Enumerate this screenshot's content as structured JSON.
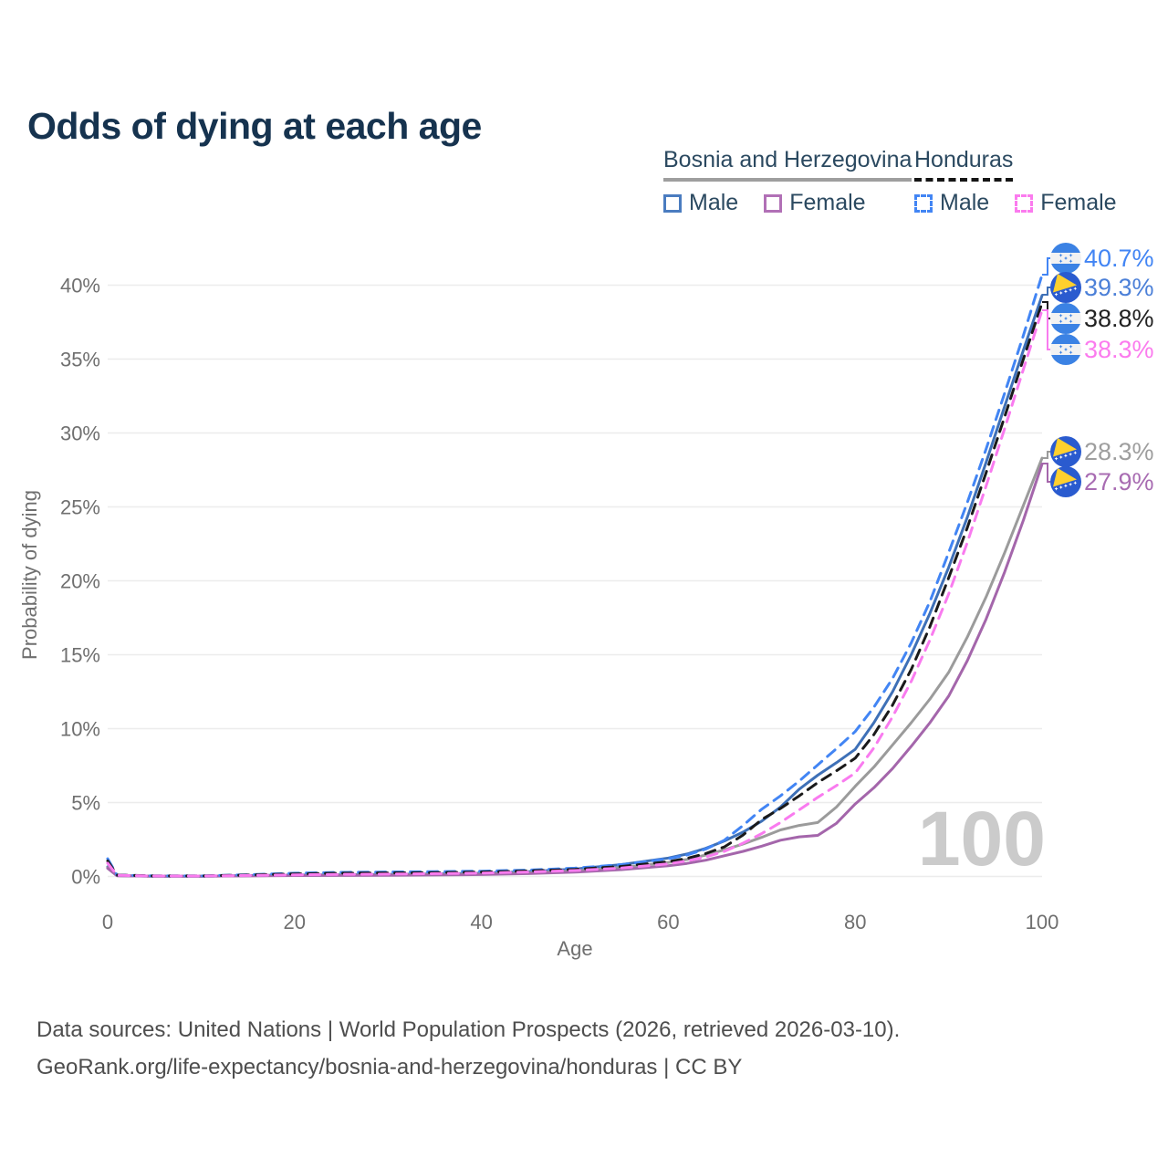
{
  "title": "Odds of dying at each age",
  "legend": {
    "groups": [
      {
        "country": "Bosnia and Herzegovina",
        "items": [
          {
            "label": "Male"
          },
          {
            "label": "Female"
          }
        ]
      },
      {
        "country": "Honduras",
        "items": [
          {
            "label": "Male"
          },
          {
            "label": "Female"
          }
        ]
      }
    ]
  },
  "chart_data": {
    "type": "line",
    "title": "Odds of dying at each age",
    "xlabel": "Age",
    "ylabel": "Probability of dying",
    "xlim": [
      0,
      100
    ],
    "ylim_pct": [
      0,
      42.5
    ],
    "x_ticks": [
      0,
      20,
      40,
      60,
      80,
      100
    ],
    "y_ticks_pct": [
      0,
      5,
      10,
      15,
      20,
      25,
      30,
      35,
      40
    ],
    "grid": "horizontal",
    "legend_position": "top-right",
    "watermark": "100",
    "x": [
      0,
      1,
      5,
      10,
      15,
      20,
      25,
      30,
      35,
      40,
      45,
      50,
      55,
      60,
      62,
      64,
      66,
      68,
      70,
      72,
      74,
      76,
      78,
      80,
      82,
      84,
      86,
      88,
      90,
      92,
      94,
      96,
      98,
      100
    ],
    "series": [
      {
        "name": "Honduras Male",
        "style": "dashed",
        "color": "#4285f4",
        "label_color": "#4285f4",
        "end_label": "40.7%",
        "end_value_pct": 40.7,
        "flag": "honduras",
        "values": [
          1.2,
          0.1,
          0.04,
          0.04,
          0.12,
          0.22,
          0.28,
          0.3,
          0.33,
          0.36,
          0.43,
          0.56,
          0.8,
          1.2,
          1.45,
          1.85,
          2.45,
          3.45,
          4.55,
          5.45,
          6.45,
          7.55,
          8.65,
          9.8,
          11.45,
          13.4,
          15.8,
          18.6,
          21.9,
          25.3,
          28.9,
          32.7,
          36.6,
          40.7
        ]
      },
      {
        "name": "Bosnia and Herzegovina Male",
        "style": "solid",
        "color": "#3e70b7",
        "label_color": "#4c80d8",
        "end_label": "39.3%",
        "end_value_pct": 39.3,
        "flag": "bosnia",
        "values": [
          0.65,
          0.06,
          0.02,
          0.02,
          0.06,
          0.1,
          0.12,
          0.14,
          0.17,
          0.22,
          0.32,
          0.5,
          0.8,
          1.25,
          1.52,
          1.9,
          2.4,
          3.0,
          3.75,
          4.7,
          5.9,
          6.85,
          7.7,
          8.6,
          10.4,
          12.5,
          15.0,
          17.8,
          20.9,
          24.3,
          28.0,
          31.8,
          35.6,
          39.3
        ]
      },
      {
        "name": "Honduras",
        "style": "dashed",
        "color": "#1a1a1a",
        "label_color": "#222222",
        "end_label": "38.8%",
        "end_value_pct": 38.8,
        "flag": "honduras",
        "values": [
          1.05,
          0.09,
          0.035,
          0.035,
          0.1,
          0.17,
          0.22,
          0.24,
          0.26,
          0.3,
          0.37,
          0.48,
          0.68,
          1.0,
          1.22,
          1.55,
          2.0,
          2.8,
          3.85,
          4.6,
          5.45,
          6.35,
          7.15,
          8.0,
          9.6,
          11.6,
          14.0,
          16.9,
          20.2,
          23.6,
          27.3,
          31.1,
          35.0,
          38.8
        ]
      },
      {
        "name": "Honduras Female",
        "style": "dashed",
        "color": "#f97bef",
        "label_color": "#fb7bee",
        "end_label": "38.3%",
        "end_value_pct": 38.3,
        "flag": "honduras",
        "values": [
          0.9,
          0.08,
          0.03,
          0.03,
          0.07,
          0.11,
          0.14,
          0.16,
          0.19,
          0.23,
          0.3,
          0.4,
          0.57,
          0.85,
          1.05,
          1.32,
          1.7,
          2.25,
          2.9,
          3.65,
          4.5,
          5.35,
          6.15,
          7.0,
          8.7,
          10.8,
          13.2,
          16.0,
          19.1,
          22.6,
          26.4,
          30.3,
          34.3,
          38.3
        ]
      },
      {
        "name": "Bosnia and Herzegovina",
        "style": "solid",
        "color": "#9b9b9b",
        "label_color": "#9e9e9e",
        "end_label": "28.3%",
        "end_value_pct": 28.3,
        "flag": "bosnia",
        "values": [
          0.6,
          0.055,
          0.02,
          0.02,
          0.05,
          0.08,
          0.1,
          0.11,
          0.13,
          0.17,
          0.25,
          0.38,
          0.6,
          0.95,
          1.15,
          1.45,
          1.8,
          2.2,
          2.65,
          3.15,
          3.45,
          3.65,
          4.7,
          6.1,
          7.4,
          8.9,
          10.4,
          12.0,
          13.8,
          16.2,
          18.9,
          21.9,
          25.1,
          28.3
        ]
      },
      {
        "name": "Bosnia and Herzegovina Female",
        "style": "solid",
        "color": "#a466ab",
        "label_color": "#a86cb2",
        "end_label": "27.9%",
        "end_value_pct": 27.9,
        "flag": "bosnia",
        "values": [
          0.55,
          0.05,
          0.02,
          0.02,
          0.04,
          0.06,
          0.07,
          0.08,
          0.1,
          0.13,
          0.19,
          0.29,
          0.46,
          0.72,
          0.88,
          1.1,
          1.4,
          1.7,
          2.05,
          2.45,
          2.68,
          2.78,
          3.6,
          4.9,
          6.0,
          7.3,
          8.8,
          10.4,
          12.2,
          14.6,
          17.4,
          20.6,
          24.1,
          27.9
        ]
      }
    ]
  },
  "footer": {
    "line1": "Data sources: United Nations | World Population Prospects (2026, retrieved 2026-03-10).",
    "line2": "GeoRank.org/life-expectancy/bosnia-and-herzegovina/honduras | CC BY"
  }
}
